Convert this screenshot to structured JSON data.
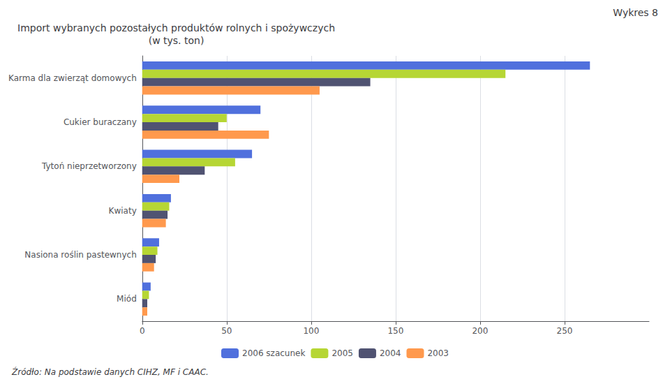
{
  "chart_data": {
    "type": "bar",
    "orientation": "horizontal",
    "title": "Wykres 8",
    "subtitle": "Import wybranych pozostałych produktów rolnych i spożywczych\n(w tys. ton)",
    "annotations": [
      "Źródło: Na podstawie danych CIHZ, MF i CAAC."
    ],
    "categories": [
      "Karma dla zwierząt domowych",
      "Cukier buraczany",
      "Tytoń nieprzetworzony",
      "Kwiaty",
      "Nasiona roślin pastewnych",
      "Miód"
    ],
    "series": [
      {
        "name": "2006 szacunek",
        "values": [
          265,
          70,
          65,
          17,
          10,
          5
        ]
      },
      {
        "name": "2005",
        "values": [
          215,
          50,
          55,
          16,
          9,
          4
        ]
      },
      {
        "name": "2004",
        "values": [
          135,
          45,
          37,
          15,
          8,
          3
        ]
      },
      {
        "name": "2003",
        "values": [
          105,
          75,
          22,
          14,
          7,
          3
        ]
      }
    ],
    "xlim": [
      0,
      300
    ],
    "xticks": [
      0,
      50,
      100,
      150,
      200,
      250
    ],
    "grid": true,
    "legend": "bottom"
  }
}
